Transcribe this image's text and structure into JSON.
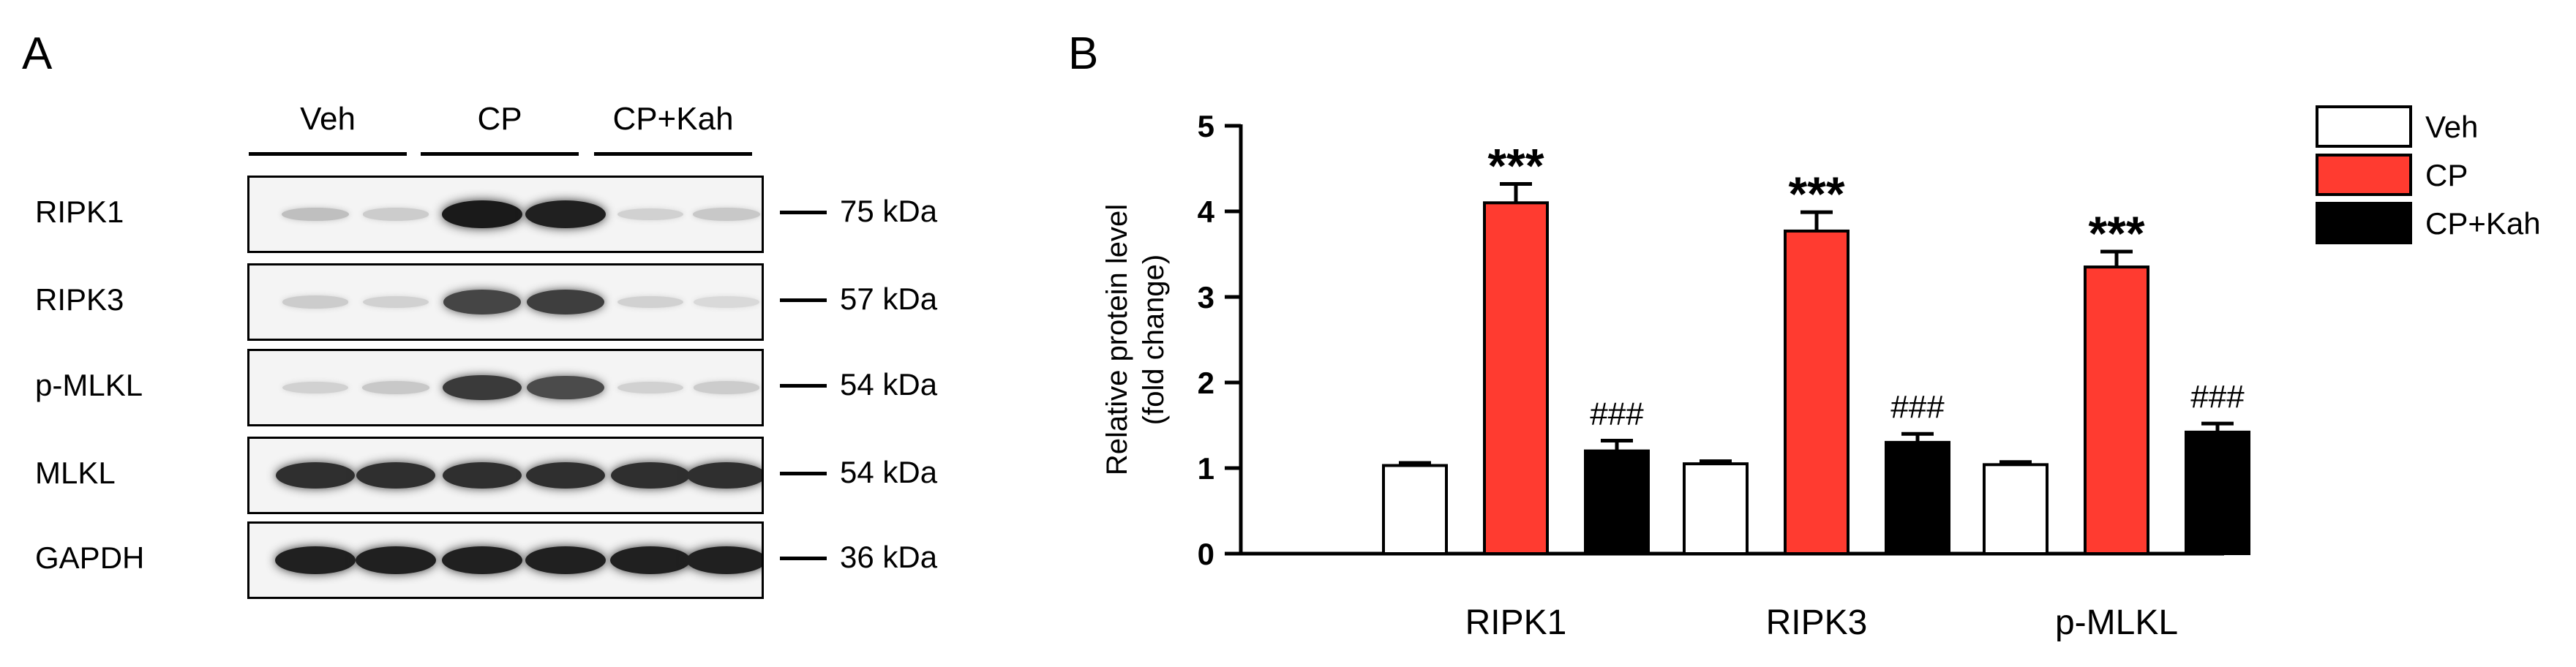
{
  "panel_letters": {
    "a": "A",
    "b": "B"
  },
  "blot": {
    "groups": [
      "Veh",
      "CP",
      "CP+Kah"
    ],
    "rows": [
      {
        "protein": "RIPK1",
        "marker": "75 kDa",
        "intensities": [
          0.18,
          0.12,
          0.95,
          0.92,
          0.1,
          0.14
        ]
      },
      {
        "protein": "RIPK3",
        "marker": "57 kDa",
        "intensities": [
          0.12,
          0.1,
          0.75,
          0.78,
          0.1,
          0.06
        ]
      },
      {
        "protein": "p-MLKL",
        "marker": "54 kDa",
        "intensities": [
          0.1,
          0.14,
          0.8,
          0.72,
          0.1,
          0.12
        ]
      },
      {
        "protein": "MLKL",
        "marker": "54 kDa",
        "intensities": [
          0.85,
          0.85,
          0.85,
          0.85,
          0.85,
          0.85
        ]
      },
      {
        "protein": "GAPDH",
        "marker": "36 kDa",
        "intensities": [
          0.92,
          0.92,
          0.92,
          0.92,
          0.92,
          0.92
        ]
      }
    ]
  },
  "chart_data": {
    "type": "bar",
    "title": "",
    "ylabel_lines": [
      "Relative protein level",
      "(fold change)"
    ],
    "ylim": [
      0,
      5
    ],
    "yticks": [
      0,
      1,
      2,
      3,
      4,
      5
    ],
    "categories": [
      "RIPK1",
      "RIPK3",
      "p-MLKL"
    ],
    "series": [
      {
        "name": "Veh",
        "color": "#ffffff",
        "values": [
          1.03,
          1.05,
          1.04
        ],
        "errors": [
          0.03,
          0.03,
          0.03
        ],
        "annotations": [
          "",
          "",
          ""
        ]
      },
      {
        "name": "CP",
        "color": "#ff3b30",
        "values": [
          4.1,
          3.77,
          3.35
        ],
        "errors": [
          0.22,
          0.22,
          0.18
        ],
        "annotations": [
          "***",
          "***",
          "***"
        ]
      },
      {
        "name": "CP+Kah",
        "color": "#000000",
        "values": [
          1.2,
          1.3,
          1.42
        ],
        "errors": [
          0.12,
          0.1,
          0.1
        ],
        "annotations": [
          "###",
          "###",
          "###"
        ]
      }
    ],
    "legend_position": "top-right",
    "grid": false
  }
}
